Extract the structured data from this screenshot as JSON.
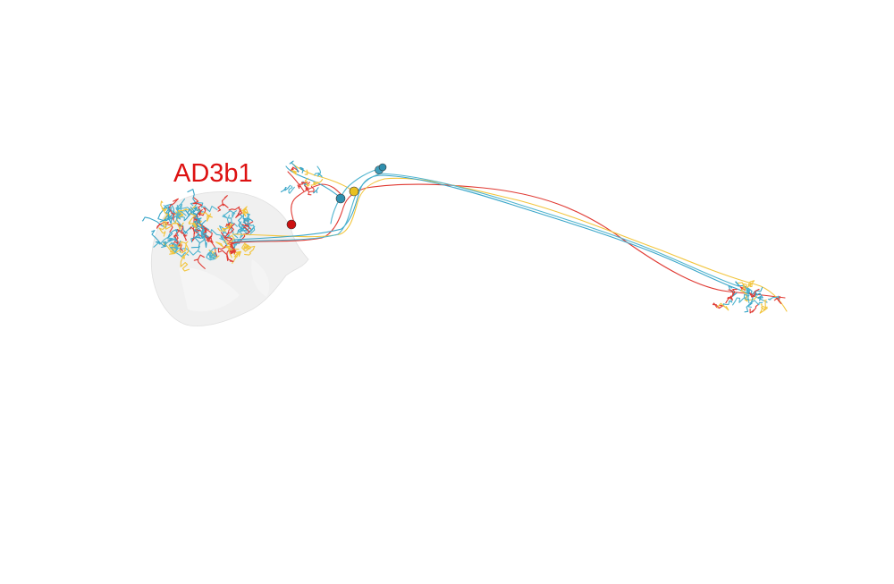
{
  "viewer": {
    "label": "AD3b1",
    "label_color": "#dd1111",
    "background": "#ffffff",
    "neuropil_color": "#e4e4e4",
    "neurons": [
      {
        "color": "#e03a33",
        "soma_color": "#cc1111"
      },
      {
        "color": "#f2c53d",
        "soma_color": "#e8c020"
      },
      {
        "color": "#3aa6c9",
        "soma_color": "#2f8fae"
      },
      {
        "color": "#4fb4cf",
        "soma_color": "#3f9fbd"
      }
    ]
  }
}
